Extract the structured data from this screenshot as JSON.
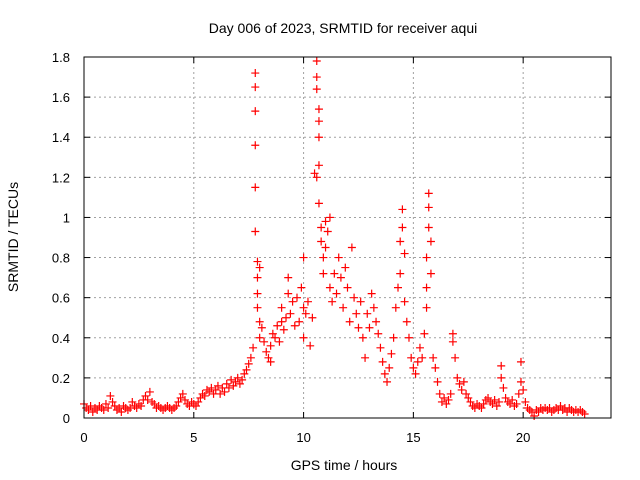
{
  "chart_data": {
    "type": "scatter",
    "title": "Day 006 of 2023, SRMTID for receiver aqui",
    "xlabel": "GPS time / hours",
    "ylabel": "SRMTID / TECUs",
    "xlim": [
      0,
      24
    ],
    "ylim": [
      0,
      1.8
    ],
    "xticks": [
      0,
      5,
      10,
      15,
      20
    ],
    "xtick_labels": [
      "0",
      "5",
      "10",
      "15",
      "20"
    ],
    "yticks": [
      0,
      0.2,
      0.4,
      0.6,
      0.8,
      1,
      1.2,
      1.4,
      1.6,
      1.8
    ],
    "ytick_labels": [
      "0",
      "0.2",
      "0.4",
      "0.6",
      "0.8",
      "1",
      "1.2",
      "1.4",
      "1.6",
      "1.8"
    ],
    "grid": true,
    "marker": "+",
    "color": "#ff0000",
    "series": [
      {
        "name": "SRMTID",
        "points": [
          [
            0.0,
            0.07
          ],
          [
            0.1,
            0.05
          ],
          [
            0.2,
            0.04
          ],
          [
            0.3,
            0.06
          ],
          [
            0.4,
            0.03
          ],
          [
            0.5,
            0.05
          ],
          [
            0.6,
            0.04
          ],
          [
            0.7,
            0.06
          ],
          [
            0.8,
            0.05
          ],
          [
            0.9,
            0.04
          ],
          [
            1.0,
            0.07
          ],
          [
            1.1,
            0.05
          ],
          [
            1.2,
            0.11
          ],
          [
            1.3,
            0.08
          ],
          [
            1.4,
            0.06
          ],
          [
            1.5,
            0.04
          ],
          [
            1.6,
            0.05
          ],
          [
            1.7,
            0.03
          ],
          [
            1.8,
            0.06
          ],
          [
            1.9,
            0.05
          ],
          [
            2.0,
            0.04
          ],
          [
            2.1,
            0.05
          ],
          [
            2.2,
            0.08
          ],
          [
            2.3,
            0.06
          ],
          [
            2.4,
            0.05
          ],
          [
            2.5,
            0.07
          ],
          [
            2.6,
            0.06
          ],
          [
            2.7,
            0.09
          ],
          [
            2.8,
            0.11
          ],
          [
            2.9,
            0.09
          ],
          [
            3.0,
            0.13
          ],
          [
            3.1,
            0.08
          ],
          [
            3.2,
            0.07
          ],
          [
            3.3,
            0.05
          ],
          [
            3.4,
            0.06
          ],
          [
            3.5,
            0.05
          ],
          [
            3.6,
            0.04
          ],
          [
            3.7,
            0.05
          ],
          [
            3.8,
            0.06
          ],
          [
            3.9,
            0.05
          ],
          [
            4.0,
            0.04
          ],
          [
            4.1,
            0.05
          ],
          [
            4.2,
            0.06
          ],
          [
            4.3,
            0.08
          ],
          [
            4.4,
            0.1
          ],
          [
            4.5,
            0.12
          ],
          [
            4.6,
            0.09
          ],
          [
            4.7,
            0.07
          ],
          [
            4.8,
            0.06
          ],
          [
            4.9,
            0.08
          ],
          [
            5.0,
            0.07
          ],
          [
            5.1,
            0.06
          ],
          [
            5.2,
            0.08
          ],
          [
            5.3,
            0.1
          ],
          [
            5.4,
            0.12
          ],
          [
            5.5,
            0.11
          ],
          [
            5.6,
            0.14
          ],
          [
            5.7,
            0.13
          ],
          [
            5.8,
            0.15
          ],
          [
            5.9,
            0.12
          ],
          [
            6.0,
            0.14
          ],
          [
            6.1,
            0.16
          ],
          [
            6.2,
            0.12
          ],
          [
            6.3,
            0.15
          ],
          [
            6.4,
            0.13
          ],
          [
            6.5,
            0.17
          ],
          [
            6.6,
            0.15
          ],
          [
            6.7,
            0.19
          ],
          [
            6.8,
            0.16
          ],
          [
            6.9,
            0.18
          ],
          [
            7.0,
            0.2
          ],
          [
            7.1,
            0.17
          ],
          [
            7.2,
            0.19
          ],
          [
            7.3,
            0.22
          ],
          [
            7.4,
            0.24
          ],
          [
            7.5,
            0.27
          ],
          [
            7.6,
            0.3
          ],
          [
            7.7,
            0.35
          ],
          [
            7.8,
            1.72
          ],
          [
            7.8,
            1.65
          ],
          [
            7.8,
            1.53
          ],
          [
            7.8,
            1.36
          ],
          [
            7.8,
            1.15
          ],
          [
            7.8,
            0.93
          ],
          [
            7.9,
            0.78
          ],
          [
            7.9,
            0.7
          ],
          [
            7.9,
            0.62
          ],
          [
            7.9,
            0.55
          ],
          [
            8.0,
            0.75
          ],
          [
            8.0,
            0.48
          ],
          [
            8.0,
            0.4
          ],
          [
            8.1,
            0.45
          ],
          [
            8.2,
            0.38
          ],
          [
            8.3,
            0.33
          ],
          [
            8.4,
            0.3
          ],
          [
            8.5,
            0.36
          ],
          [
            8.5,
            0.28
          ],
          [
            8.6,
            0.42
          ],
          [
            8.7,
            0.4
          ],
          [
            8.8,
            0.46
          ],
          [
            8.9,
            0.38
          ],
          [
            9.0,
            0.48
          ],
          [
            9.0,
            0.55
          ],
          [
            9.1,
            0.44
          ],
          [
            9.2,
            0.5
          ],
          [
            9.3,
            0.62
          ],
          [
            9.3,
            0.7
          ],
          [
            9.4,
            0.52
          ],
          [
            9.5,
            0.58
          ],
          [
            9.6,
            0.46
          ],
          [
            9.7,
            0.6
          ],
          [
            9.8,
            0.48
          ],
          [
            9.9,
            0.65
          ],
          [
            10.0,
            0.55
          ],
          [
            10.0,
            0.8
          ],
          [
            10.0,
            0.4
          ],
          [
            10.1,
            0.52
          ],
          [
            10.2,
            0.58
          ],
          [
            10.3,
            0.36
          ],
          [
            10.4,
            0.5
          ],
          [
            10.5,
            1.22
          ],
          [
            10.6,
            1.2
          ],
          [
            10.6,
            1.78
          ],
          [
            10.6,
            1.7
          ],
          [
            10.6,
            1.64
          ],
          [
            10.7,
            1.54
          ],
          [
            10.7,
            1.48
          ],
          [
            10.7,
            1.4
          ],
          [
            10.7,
            1.26
          ],
          [
            10.7,
            1.07
          ],
          [
            10.8,
            0.95
          ],
          [
            10.8,
            0.88
          ],
          [
            10.9,
            0.8
          ],
          [
            10.9,
            0.72
          ],
          [
            11.0,
            0.98
          ],
          [
            11.0,
            0.85
          ],
          [
            11.1,
            0.93
          ],
          [
            11.2,
            1.0
          ],
          [
            11.2,
            0.65
          ],
          [
            11.3,
            0.58
          ],
          [
            11.4,
            0.72
          ],
          [
            11.5,
            0.62
          ],
          [
            11.6,
            0.8
          ],
          [
            11.7,
            0.7
          ],
          [
            11.8,
            0.55
          ],
          [
            11.9,
            0.75
          ],
          [
            12.0,
            0.65
          ],
          [
            12.1,
            0.48
          ],
          [
            12.2,
            0.85
          ],
          [
            12.3,
            0.6
          ],
          [
            12.4,
            0.52
          ],
          [
            12.5,
            0.45
          ],
          [
            12.6,
            0.58
          ],
          [
            12.7,
            0.4
          ],
          [
            12.8,
            0.3
          ],
          [
            12.9,
            0.52
          ],
          [
            13.0,
            0.45
          ],
          [
            13.1,
            0.62
          ],
          [
            13.2,
            0.55
          ],
          [
            13.3,
            0.48
          ],
          [
            13.4,
            0.42
          ],
          [
            13.5,
            0.35
          ],
          [
            13.6,
            0.28
          ],
          [
            13.7,
            0.22
          ],
          [
            13.8,
            0.18
          ],
          [
            13.9,
            0.25
          ],
          [
            14.0,
            0.32
          ],
          [
            14.1,
            0.4
          ],
          [
            14.2,
            0.55
          ],
          [
            14.3,
            0.65
          ],
          [
            14.4,
            0.72
          ],
          [
            14.4,
            0.88
          ],
          [
            14.5,
            1.04
          ],
          [
            14.5,
            0.95
          ],
          [
            14.6,
            0.82
          ],
          [
            14.6,
            0.58
          ],
          [
            14.7,
            0.48
          ],
          [
            14.8,
            0.4
          ],
          [
            14.9,
            0.3
          ],
          [
            15.0,
            0.25
          ],
          [
            15.1,
            0.22
          ],
          [
            15.2,
            0.28
          ],
          [
            15.3,
            0.35
          ],
          [
            15.4,
            0.3
          ],
          [
            15.5,
            0.42
          ],
          [
            15.6,
            0.55
          ],
          [
            15.6,
            0.65
          ],
          [
            15.6,
            0.8
          ],
          [
            15.7,
            1.12
          ],
          [
            15.7,
            1.05
          ],
          [
            15.7,
            0.95
          ],
          [
            15.8,
            0.88
          ],
          [
            15.8,
            0.72
          ],
          [
            15.9,
            0.3
          ],
          [
            16.0,
            0.25
          ],
          [
            16.1,
            0.18
          ],
          [
            16.2,
            0.12
          ],
          [
            16.3,
            0.08
          ],
          [
            16.4,
            0.1
          ],
          [
            16.5,
            0.07
          ],
          [
            16.6,
            0.09
          ],
          [
            16.7,
            0.12
          ],
          [
            16.8,
            0.38
          ],
          [
            16.8,
            0.42
          ],
          [
            16.9,
            0.3
          ],
          [
            17.0,
            0.2
          ],
          [
            17.1,
            0.17
          ],
          [
            17.2,
            0.14
          ],
          [
            17.3,
            0.18
          ],
          [
            17.4,
            0.12
          ],
          [
            17.5,
            0.1
          ],
          [
            17.6,
            0.08
          ],
          [
            17.7,
            0.06
          ],
          [
            17.8,
            0.05
          ],
          [
            17.9,
            0.07
          ],
          [
            18.0,
            0.06
          ],
          [
            18.1,
            0.05
          ],
          [
            18.2,
            0.07
          ],
          [
            18.3,
            0.09
          ],
          [
            18.4,
            0.1
          ],
          [
            18.5,
            0.08
          ],
          [
            18.6,
            0.07
          ],
          [
            18.7,
            0.09
          ],
          [
            18.8,
            0.06
          ],
          [
            18.9,
            0.08
          ],
          [
            19.0,
            0.2
          ],
          [
            19.0,
            0.26
          ],
          [
            19.1,
            0.15
          ],
          [
            19.2,
            0.1
          ],
          [
            19.3,
            0.08
          ],
          [
            19.4,
            0.07
          ],
          [
            19.5,
            0.09
          ],
          [
            19.6,
            0.06
          ],
          [
            19.7,
            0.07
          ],
          [
            19.8,
            0.12
          ],
          [
            19.9,
            0.18
          ],
          [
            19.9,
            0.28
          ],
          [
            20.0,
            0.14
          ],
          [
            20.1,
            0.08
          ],
          [
            20.2,
            0.05
          ],
          [
            20.3,
            0.04
          ],
          [
            20.4,
            0.03
          ],
          [
            20.5,
            0.01
          ],
          [
            20.6,
            0.04
          ],
          [
            20.7,
            0.03
          ],
          [
            20.8,
            0.05
          ],
          [
            20.9,
            0.04
          ],
          [
            21.0,
            0.05
          ],
          [
            21.1,
            0.04
          ],
          [
            21.2,
            0.05
          ],
          [
            21.3,
            0.03
          ],
          [
            21.4,
            0.04
          ],
          [
            21.5,
            0.05
          ],
          [
            21.6,
            0.04
          ],
          [
            21.7,
            0.06
          ],
          [
            21.8,
            0.04
          ],
          [
            21.9,
            0.05
          ],
          [
            22.0,
            0.03
          ],
          [
            22.1,
            0.05
          ],
          [
            22.2,
            0.04
          ],
          [
            22.3,
            0.03
          ],
          [
            22.4,
            0.04
          ],
          [
            22.5,
            0.03
          ],
          [
            22.6,
            0.04
          ],
          [
            22.7,
            0.03
          ],
          [
            22.8,
            0.02
          ]
        ]
      }
    ]
  }
}
